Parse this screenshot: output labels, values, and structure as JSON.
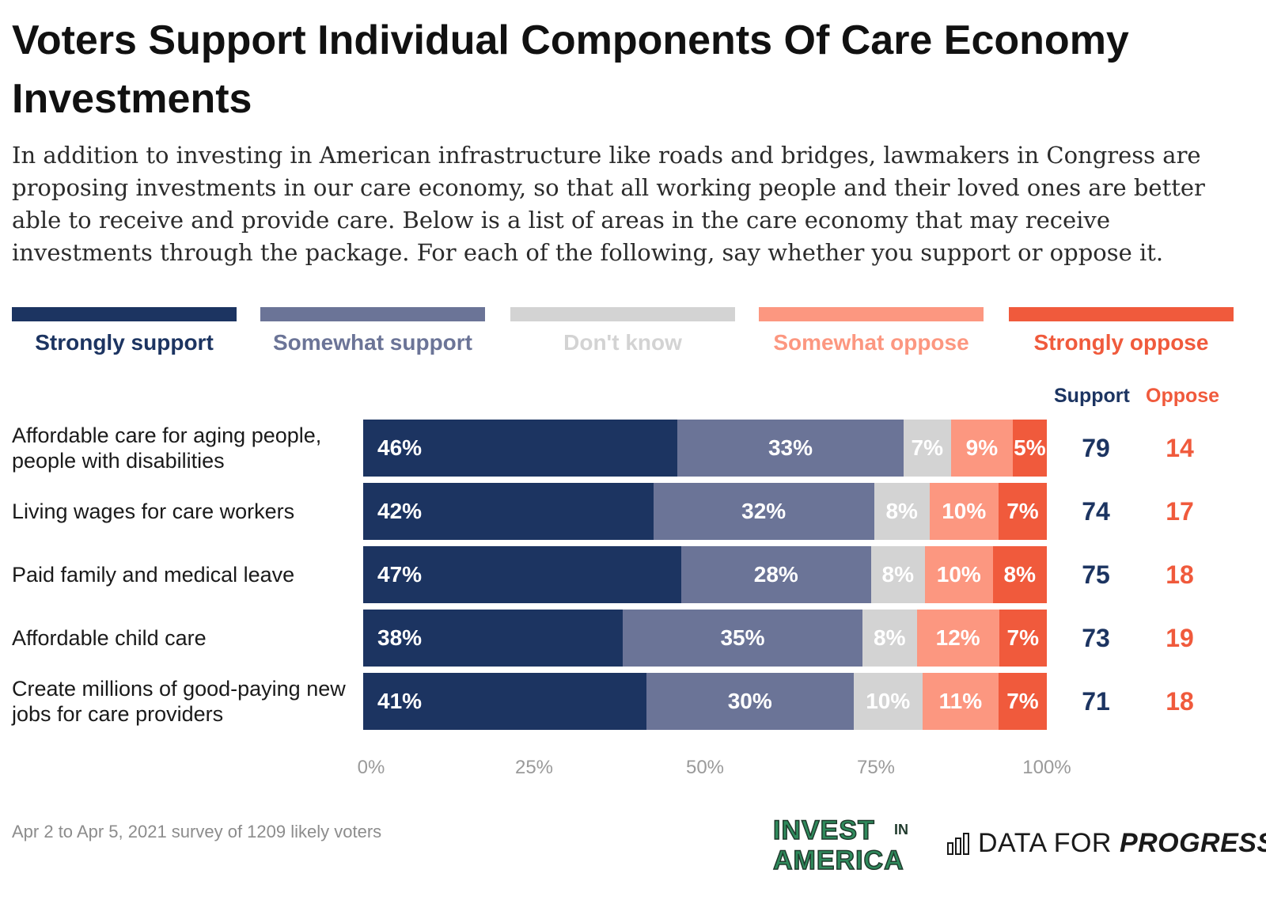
{
  "header": {
    "title": "Voters Support Individual Components Of Care Economy Investments",
    "subtitle": "In addition to investing in American infrastructure like roads and bridges, lawmakers in Congress are proposing investments in our care economy, so that all working people and their loved ones are better able to receive and provide care. Below is a list of areas in the care economy that may receive investments through the package. For each of the following, say whether you support or oppose it."
  },
  "colors": {
    "strongly_support": "#1c3461",
    "somewhat_support": "#6b7497",
    "dont_know": "#d3d3d3",
    "somewhat_oppose": "#fc9780",
    "strongly_oppose": "#f05a3c",
    "axis_tick": "#9a9a9a"
  },
  "summary_headers": {
    "support": "Support",
    "oppose": "Oppose"
  },
  "chart_data": {
    "type": "bar",
    "orientation": "horizontal",
    "stacked": true,
    "categories": [
      "Affordable care for aging people, people with disabilities",
      "Living wages for care workers",
      "Paid family and medical leave",
      "Affordable child care",
      "Create millions of good-paying new jobs for care providers"
    ],
    "series": [
      {
        "name": "Strongly support",
        "values": [
          46,
          42,
          47,
          38,
          41
        ],
        "labels": [
          "46%",
          "42%",
          "47%",
          "38%",
          "41%"
        ]
      },
      {
        "name": "Somewhat support",
        "values": [
          33,
          32,
          28,
          35,
          30
        ],
        "labels": [
          "33%",
          "32%",
          "28%",
          "35%",
          "30%"
        ]
      },
      {
        "name": "Don't know",
        "values": [
          7,
          8,
          8,
          8,
          10
        ],
        "labels": [
          "7%",
          "8%",
          "8%",
          "8%",
          "10%"
        ]
      },
      {
        "name": "Somewhat oppose",
        "values": [
          9,
          10,
          10,
          12,
          11
        ],
        "labels": [
          "9%",
          "10%",
          "10%",
          "12%",
          "11%"
        ]
      },
      {
        "name": "Strongly oppose",
        "values": [
          5,
          7,
          8,
          7,
          7
        ],
        "labels": [
          "5%",
          "7%",
          "8%",
          "7%",
          "7%"
        ]
      }
    ],
    "support_totals": [
      "79",
      "74",
      "75",
      "73",
      "71"
    ],
    "oppose_totals": [
      "14",
      "17",
      "18",
      "19",
      "18"
    ],
    "xlim": [
      0,
      100
    ],
    "xticks": [
      "0%",
      "25%",
      "50%",
      "75%",
      "100%"
    ],
    "legend_position": "top"
  },
  "footer": {
    "source": "Apr 2 to Apr 5, 2021 survey of 1209 likely voters",
    "logo_invest_line1": "INVEST",
    "logo_invest_in": "IN",
    "logo_invest_line2": "AMERICA",
    "logo_dfp_prefix": "DATA FOR",
    "logo_dfp_suffix": "PROGRESS"
  }
}
